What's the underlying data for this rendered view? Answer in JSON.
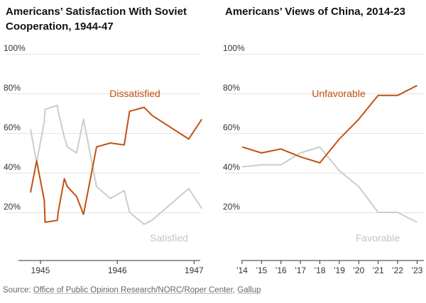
{
  "chart_data": [
    {
      "type": "line",
      "title": "Americans’ Satisfaction With Soviet Cooperation, 1944-47",
      "x_range": [
        1944.75,
        1947.08
      ],
      "ylim": [
        0,
        100
      ],
      "y_ticks": [
        {
          "value": 100,
          "label": "100%"
        },
        {
          "value": 80,
          "label": "80%"
        },
        {
          "value": 60,
          "label": "60%"
        },
        {
          "value": 40,
          "label": "40%"
        },
        {
          "value": 20,
          "label": "20%"
        }
      ],
      "x_ticks": [
        {
          "value": 1945,
          "label": "1945"
        },
        {
          "value": 1946,
          "label": "1946"
        },
        {
          "value": 1947,
          "label": "1947"
        }
      ],
      "series": [
        {
          "name": "Dissatisfied",
          "label": "Dissatisfied",
          "color": "#c2510f",
          "points": [
            [
              1944.87,
              30
            ],
            [
              1944.95,
              46
            ],
            [
              1945.05,
              26
            ],
            [
              1945.06,
              15
            ],
            [
              1945.22,
              16
            ],
            [
              1945.23,
              20
            ],
            [
              1945.31,
              37
            ],
            [
              1945.35,
              33
            ],
            [
              1945.47,
              28
            ],
            [
              1945.56,
              19
            ],
            [
              1945.73,
              53
            ],
            [
              1945.91,
              55
            ],
            [
              1946.09,
              54
            ],
            [
              1946.16,
              71
            ],
            [
              1946.35,
              73
            ],
            [
              1946.45,
              69
            ],
            [
              1946.93,
              57
            ],
            [
              1947.1,
              67
            ]
          ]
        },
        {
          "name": "Satisfied",
          "label": "Satisfied",
          "color": "#cccccc",
          "points": [
            [
              1944.87,
              62
            ],
            [
              1944.95,
              45
            ],
            [
              1945.05,
              66
            ],
            [
              1945.06,
              72
            ],
            [
              1945.22,
              74
            ],
            [
              1945.23,
              71
            ],
            [
              1945.31,
              58
            ],
            [
              1945.35,
              53
            ],
            [
              1945.47,
              50
            ],
            [
              1945.56,
              67
            ],
            [
              1945.73,
              33
            ],
            [
              1945.91,
              27
            ],
            [
              1946.09,
              31
            ],
            [
              1946.16,
              20
            ],
            [
              1946.35,
              14
            ],
            [
              1946.45,
              16
            ],
            [
              1946.93,
              32
            ],
            [
              1947.1,
              22
            ]
          ]
        }
      ]
    },
    {
      "type": "line",
      "title": "Americans’ Views of China, 2014-23",
      "x_range": [
        2013.6,
        2023.35
      ],
      "ylim": [
        0,
        100
      ],
      "y_ticks": [
        {
          "value": 100,
          "label": "100%"
        },
        {
          "value": 80,
          "label": "80%"
        },
        {
          "value": 60,
          "label": "60%"
        },
        {
          "value": 40,
          "label": "40%"
        },
        {
          "value": 20,
          "label": "20%"
        }
      ],
      "x_ticks": [
        {
          "value": 2014,
          "label": "’14"
        },
        {
          "value": 2015,
          "label": "’15"
        },
        {
          "value": 2016,
          "label": "’16"
        },
        {
          "value": 2017,
          "label": "’17"
        },
        {
          "value": 2018,
          "label": "’18"
        },
        {
          "value": 2019,
          "label": "’19"
        },
        {
          "value": 2020,
          "label": "’20"
        },
        {
          "value": 2021,
          "label": "’21"
        },
        {
          "value": 2022,
          "label": "’22"
        },
        {
          "value": 2023,
          "label": "’23"
        }
      ],
      "series": [
        {
          "name": "Unfavorable",
          "label": "Unfavorable",
          "color": "#c2510f",
          "points": [
            [
              2014,
              53
            ],
            [
              2015,
              50
            ],
            [
              2016,
              52
            ],
            [
              2017,
              48
            ],
            [
              2018,
              45
            ],
            [
              2019,
              57
            ],
            [
              2020,
              67
            ],
            [
              2021,
              79
            ],
            [
              2022,
              79
            ],
            [
              2023,
              84
            ]
          ]
        },
        {
          "name": "Favorable",
          "label": "Favorable",
          "color": "#cccccc",
          "points": [
            [
              2014,
              43
            ],
            [
              2015,
              44
            ],
            [
              2016,
              44
            ],
            [
              2017,
              50
            ],
            [
              2018,
              53
            ],
            [
              2019,
              41
            ],
            [
              2020,
              33
            ],
            [
              2021,
              20
            ],
            [
              2022,
              20
            ],
            [
              2023,
              15
            ]
          ]
        }
      ]
    }
  ],
  "source": {
    "prefix": "Source:",
    "links": [
      "Office of Public Opinion Research/NORC",
      "Roper Center",
      "Gallup"
    ],
    "separators": [
      "/",
      ", ",
      "; "
    ]
  }
}
